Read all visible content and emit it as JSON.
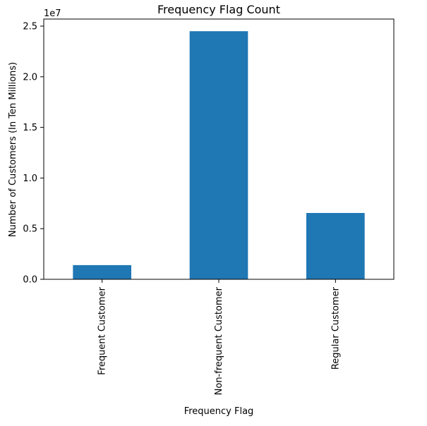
{
  "chart_data": {
    "type": "bar",
    "title": "Frequency Flag Count",
    "xlabel": "Frequency Flag",
    "ylabel": "Number of Customers (In Ten Millions)",
    "y_scale_label": "1e7",
    "categories": [
      "Frequent Customer",
      "Non-frequent Customer",
      "Regular Customer"
    ],
    "values": [
      1400000,
      24500000,
      6550000
    ],
    "ylim": [
      0,
      25700000
    ],
    "y_ticks": [
      0,
      5000000,
      10000000,
      15000000,
      20000000,
      25000000
    ],
    "y_tick_labels": [
      "0.0",
      "0.5",
      "1.0",
      "1.5",
      "2.0",
      "2.5"
    ],
    "bar_color": "#1f77b4",
    "grid": false,
    "legend": "none"
  }
}
